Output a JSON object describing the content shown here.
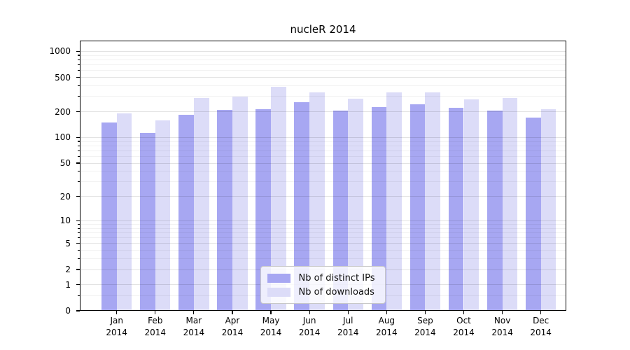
{
  "title": "nucleR 2014",
  "chart_data": {
    "type": "bar",
    "title": "nucleR 2014",
    "y_scale": "log1p",
    "categories": [
      "Jan",
      "Feb",
      "Mar",
      "Apr",
      "May",
      "Jun",
      "Jul",
      "Aug",
      "Sep",
      "Oct",
      "Nov",
      "Dec"
    ],
    "category_year": "2014",
    "series": [
      {
        "name": "Nb of distinct IPs",
        "color": "#a7a7f2",
        "values": [
          150,
          113,
          185,
          210,
          213,
          260,
          205,
          225,
          242,
          220,
          205,
          170
        ]
      },
      {
        "name": "Nb of downloads",
        "color": "#dcdcf8",
        "values": [
          190,
          158,
          290,
          300,
          388,
          337,
          285,
          335,
          332,
          278,
          288,
          215
        ]
      }
    ],
    "y_ticks": [
      0,
      1,
      2,
      5,
      10,
      20,
      50,
      100,
      200,
      500,
      1000
    ],
    "y_tick_labels": [
      "0",
      "1",
      "2",
      "5",
      "10",
      "20",
      "50",
      "100",
      "200",
      "500",
      "1000"
    ],
    "y_minor_gridlines": [
      0.5,
      3,
      4,
      6,
      7,
      8,
      9,
      30,
      40,
      60,
      70,
      80,
      90,
      300,
      400,
      600,
      700,
      800,
      900
    ],
    "ylim": [
      0,
      1333
    ],
    "grid": true,
    "legend_position": "bottom-center"
  }
}
